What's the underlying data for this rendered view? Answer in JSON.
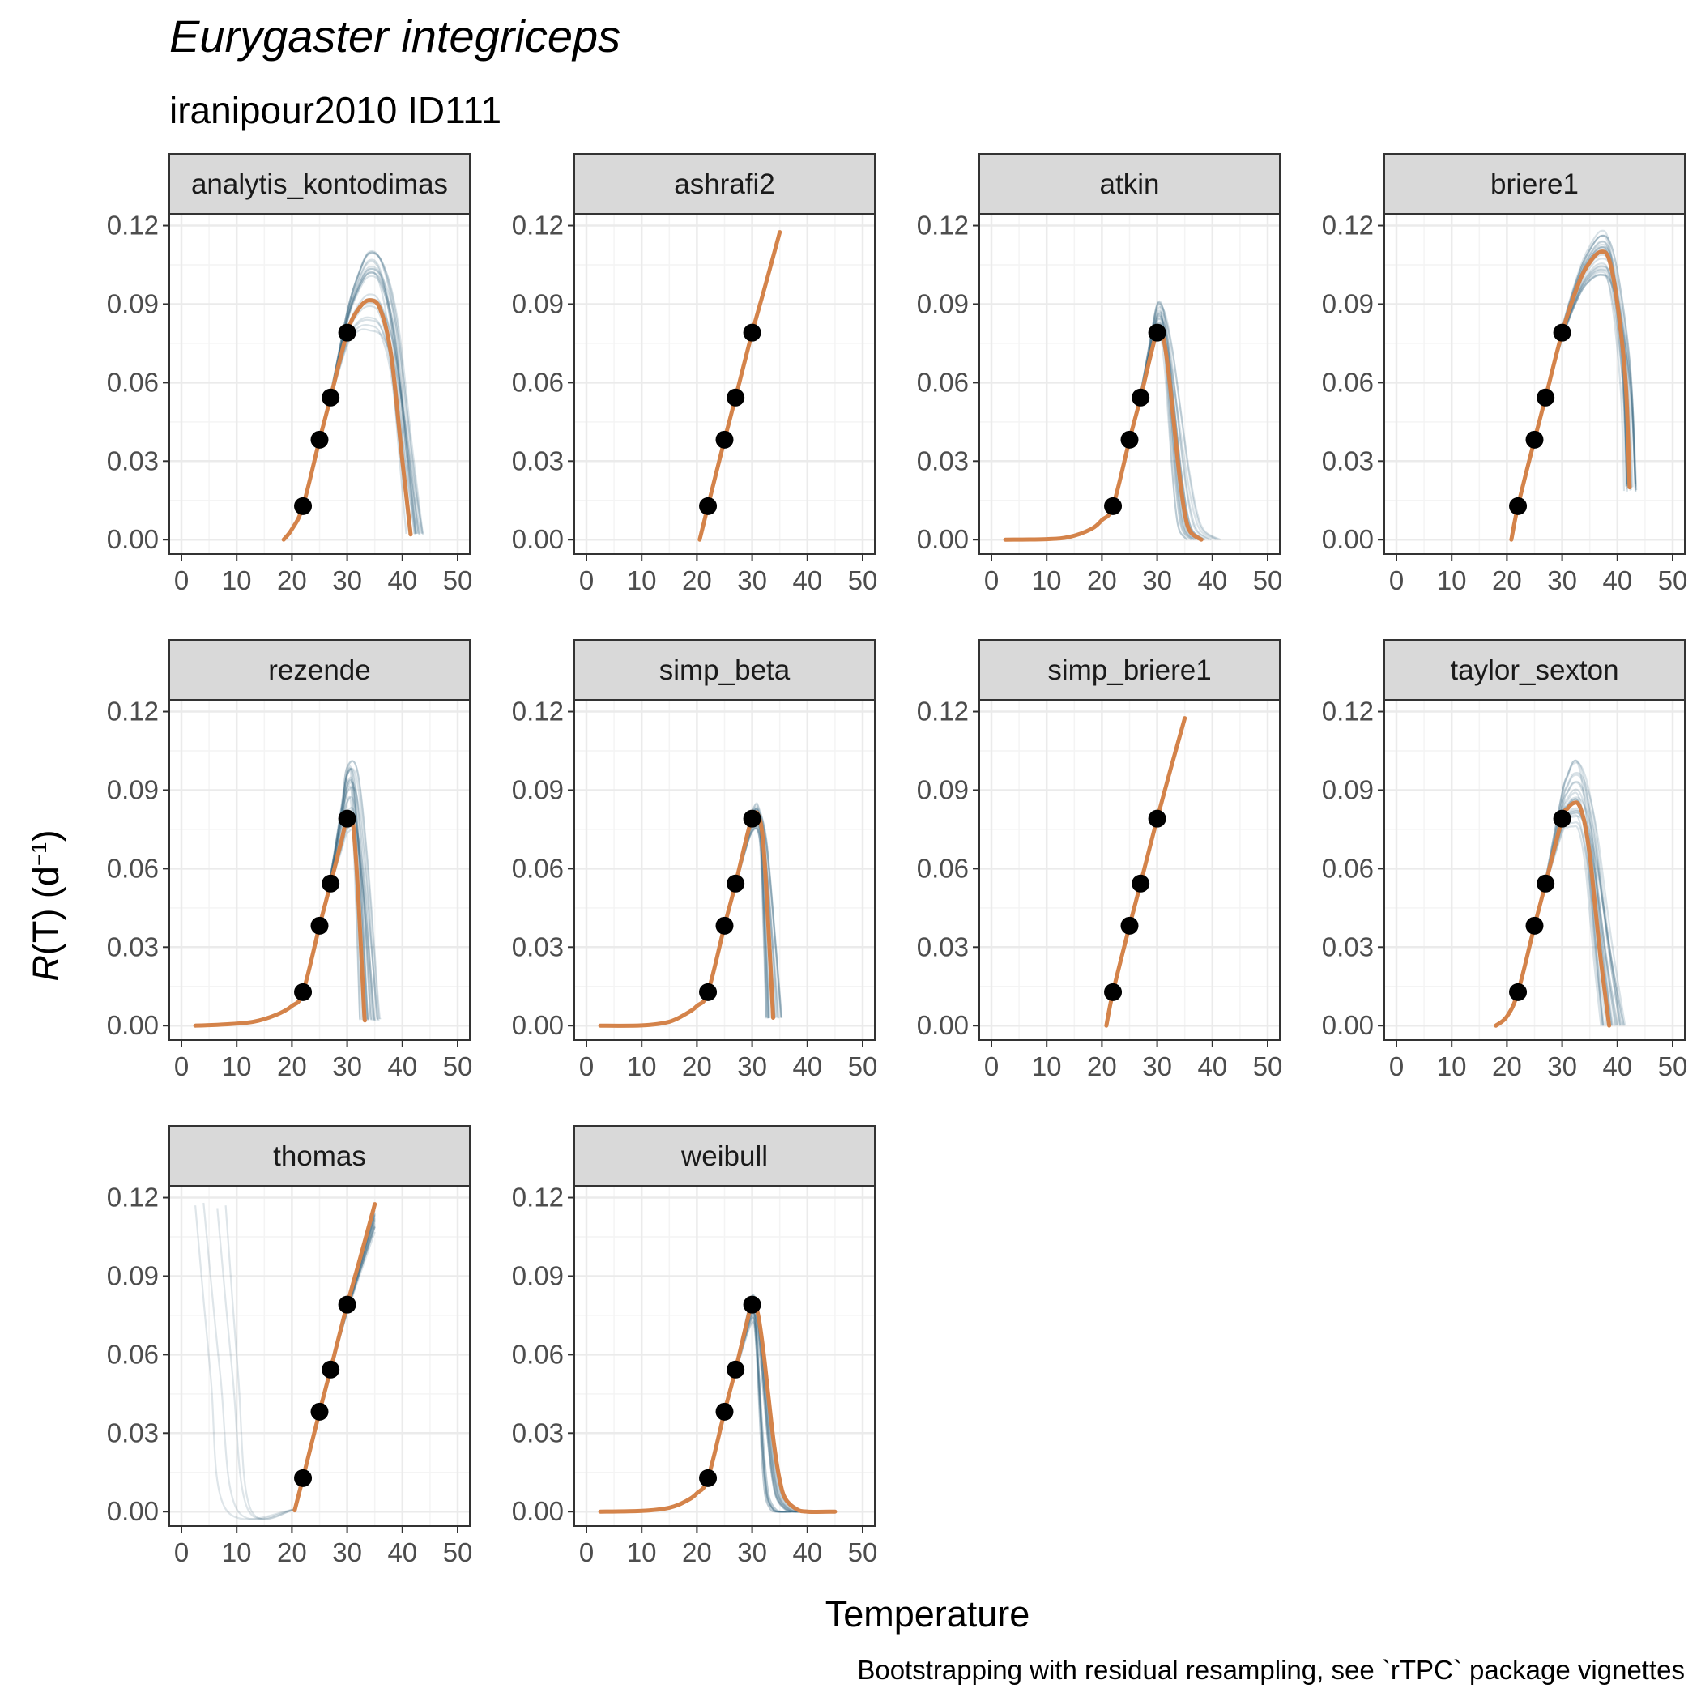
{
  "chart_data": {
    "type": "line",
    "title": "Eurygaster integriceps",
    "subtitle": "iranipour2010 ID111",
    "xlabel": "Temperature",
    "ylabel_italic": "R",
    "ylabel_rest": "(T) (d",
    "ylabel_sup": "−1",
    "ylabel_close": ")",
    "caption": "Bootstrapping with residual resampling, see `rTPC` package vignettes",
    "xlim": [
      -2.2,
      52.2
    ],
    "ylim": [
      -0.0055,
      0.1245
    ],
    "x_ticks": [
      0,
      10,
      20,
      30,
      40,
      50
    ],
    "y_ticks": [
      0.0,
      0.03,
      0.06,
      0.09,
      0.12
    ],
    "y_tick_labels": [
      "0.00",
      "0.03",
      "0.06",
      "0.09",
      "0.12"
    ],
    "grid": true,
    "colors": {
      "fit": "#d4834a",
      "bootstrap": "#2f5f78",
      "points": "#000000",
      "strip_fill": "#d9d9d9",
      "panel_border": "#333333",
      "grid_major": "#ebebeb",
      "grid_minor": "#f4f4f4"
    },
    "observed_points": [
      {
        "x": 22,
        "y": 0.0128
      },
      {
        "x": 25,
        "y": 0.0382
      },
      {
        "x": 27,
        "y": 0.0543
      },
      {
        "x": 30,
        "y": 0.0791
      }
    ],
    "panels": [
      {
        "name": "analytis_kontodimas",
        "fit": [
          [
            18.5,
            0.0
          ],
          [
            20,
            0.004
          ],
          [
            22,
            0.0128
          ],
          [
            25,
            0.0382
          ],
          [
            27,
            0.0543
          ],
          [
            30,
            0.0791
          ],
          [
            32,
            0.088
          ],
          [
            34,
            0.0915
          ],
          [
            36,
            0.088
          ],
          [
            38,
            0.07
          ],
          [
            40,
            0.03
          ],
          [
            41.5,
            0.002
          ]
        ],
        "boot_peak": [
          0.08,
          0.112
        ],
        "boot_end": [
          40.5,
          44
        ]
      },
      {
        "name": "ashrafi2",
        "fit": [
          [
            20.5,
            0.0
          ],
          [
            22,
            0.0128
          ],
          [
            25,
            0.0382
          ],
          [
            27,
            0.0543
          ],
          [
            30,
            0.0791
          ],
          [
            32.5,
            0.098
          ],
          [
            35,
            0.1175
          ]
        ],
        "boot_peak": [
          0,
          0
        ],
        "boot_end": [
          0,
          0
        ]
      },
      {
        "name": "atkin",
        "fit": [
          [
            2.5,
            0.0
          ],
          [
            10,
            0.0002
          ],
          [
            14,
            0.001
          ],
          [
            18,
            0.004
          ],
          [
            20,
            0.0075
          ],
          [
            22,
            0.0128
          ],
          [
            25,
            0.0382
          ],
          [
            27,
            0.0543
          ],
          [
            29,
            0.072
          ],
          [
            30,
            0.0791
          ],
          [
            31,
            0.078
          ],
          [
            32,
            0.065
          ],
          [
            33,
            0.045
          ],
          [
            34,
            0.025
          ],
          [
            35,
            0.01
          ],
          [
            36,
            0.003
          ],
          [
            38,
            0.0
          ]
        ],
        "boot_peak": [
          0.076,
          0.091
        ],
        "boot_end": [
          35,
          42
        ]
      },
      {
        "name": "briere1",
        "fit": [
          [
            20.8,
            0.0
          ],
          [
            22,
            0.0128
          ],
          [
            25,
            0.0382
          ],
          [
            27,
            0.0543
          ],
          [
            30,
            0.0791
          ],
          [
            33,
            0.098
          ],
          [
            35,
            0.106
          ],
          [
            37,
            0.11
          ],
          [
            38.5,
            0.107
          ],
          [
            40,
            0.09
          ],
          [
            41.5,
            0.06
          ],
          [
            42.2,
            0.02
          ]
        ],
        "boot_peak": [
          0.101,
          0.118
        ],
        "boot_end": [
          41.2,
          43.5
        ]
      },
      {
        "name": "rezende",
        "fit": [
          [
            2.5,
            0.0
          ],
          [
            8,
            0.0005
          ],
          [
            13,
            0.0015
          ],
          [
            17,
            0.004
          ],
          [
            20,
            0.0075
          ],
          [
            22,
            0.0128
          ],
          [
            25,
            0.0382
          ],
          [
            27,
            0.0543
          ],
          [
            29,
            0.071
          ],
          [
            30,
            0.0791
          ],
          [
            31,
            0.078
          ],
          [
            32,
            0.05
          ],
          [
            33,
            0.008
          ],
          [
            33.2,
            0.002
          ]
        ],
        "boot_peak": [
          0.072,
          0.099
        ],
        "boot_end": [
          32.2,
          36
        ]
      },
      {
        "name": "simp_beta",
        "fit": [
          [
            2.5,
            0.0
          ],
          [
            10,
            0.0001
          ],
          [
            15,
            0.0015
          ],
          [
            18,
            0.0045
          ],
          [
            20,
            0.0075
          ],
          [
            22,
            0.0128
          ],
          [
            25,
            0.0382
          ],
          [
            27,
            0.0543
          ],
          [
            29,
            0.072
          ],
          [
            30,
            0.0791
          ],
          [
            31,
            0.081
          ],
          [
            32,
            0.07
          ],
          [
            33,
            0.035
          ],
          [
            33.8,
            0.003
          ]
        ],
        "boot_peak": [
          0.074,
          0.085
        ],
        "boot_end": [
          32.5,
          35.5
        ]
      },
      {
        "name": "simp_briere1",
        "fit": [
          [
            20.8,
            0.0
          ],
          [
            22,
            0.0128
          ],
          [
            25,
            0.0382
          ],
          [
            27,
            0.0543
          ],
          [
            30,
            0.0791
          ],
          [
            32.5,
            0.0985
          ],
          [
            35,
            0.1175
          ]
        ],
        "boot_peak": [
          0,
          0
        ],
        "boot_end": [
          0,
          0
        ]
      },
      {
        "name": "taylor_sexton",
        "fit": [
          [
            18,
            0.0
          ],
          [
            20,
            0.0035
          ],
          [
            22,
            0.0128
          ],
          [
            25,
            0.0382
          ],
          [
            27,
            0.0543
          ],
          [
            30,
            0.0791
          ],
          [
            31,
            0.083
          ],
          [
            32,
            0.085
          ],
          [
            33,
            0.0845
          ],
          [
            34,
            0.078
          ],
          [
            35,
            0.065
          ],
          [
            36,
            0.045
          ],
          [
            37,
            0.025
          ],
          [
            38.5,
            0.0
          ]
        ],
        "boot_peak": [
          0.076,
          0.101
        ],
        "boot_end": [
          37,
          41.5
        ]
      },
      {
        "name": "thomas",
        "fit": [
          [
            20.5,
            0.0005
          ],
          [
            22,
            0.0128
          ],
          [
            25,
            0.0382
          ],
          [
            27,
            0.0543
          ],
          [
            30,
            0.0791
          ],
          [
            32.5,
            0.098
          ],
          [
            35,
            0.1175
          ]
        ],
        "boot_peak": [
          0.104,
          0.118
        ],
        "boot_end": [
          40,
          45
        ]
      },
      {
        "name": "weibull",
        "fit": [
          [
            2.5,
            0.0
          ],
          [
            10,
            0.0003
          ],
          [
            15,
            0.0015
          ],
          [
            18,
            0.004
          ],
          [
            20,
            0.007
          ],
          [
            22,
            0.0128
          ],
          [
            25,
            0.0382
          ],
          [
            27,
            0.0543
          ],
          [
            29,
            0.072
          ],
          [
            30,
            0.0791
          ],
          [
            31,
            0.076
          ],
          [
            32,
            0.062
          ],
          [
            33,
            0.043
          ],
          [
            34,
            0.025
          ],
          [
            35,
            0.012
          ],
          [
            36,
            0.005
          ],
          [
            38,
            0.001
          ],
          [
            40,
            0.0
          ],
          [
            45,
            0.0
          ]
        ],
        "boot_peak": [
          0.072,
          0.083
        ],
        "boot_end": [
          36,
          45
        ]
      }
    ]
  }
}
